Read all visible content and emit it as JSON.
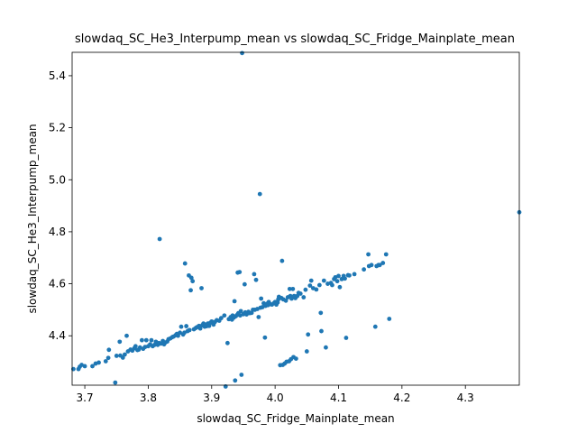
{
  "chart_data": {
    "type": "scatter",
    "title": "slowdaq_SC_He3_Interpump_mean vs slowdaq_SC_Fridge_Mainplate_mean",
    "xlabel": "slowdaq_SC_Fridge_Mainplate_mean",
    "ylabel": "slowdaq_SC_He3_Interpump_mean",
    "xlim": [
      3.68,
      4.385
    ],
    "ylim": [
      4.21,
      5.49
    ],
    "xticks": [
      "3.7",
      "3.8",
      "3.9",
      "4.0",
      "4.1",
      "4.2",
      "4.3"
    ],
    "yticks": [
      "4.4",
      "4.6",
      "4.8",
      "5.0",
      "5.2",
      "5.4"
    ],
    "grid": false,
    "point_color": "#1f77b4",
    "points": [
      [
        3.682,
        4.272
      ],
      [
        3.69,
        4.272
      ],
      [
        3.692,
        4.281
      ],
      [
        3.695,
        4.288
      ],
      [
        3.7,
        4.283
      ],
      [
        3.712,
        4.283
      ],
      [
        3.717,
        4.293
      ],
      [
        3.722,
        4.297
      ],
      [
        3.733,
        4.302
      ],
      [
        3.737,
        4.315
      ],
      [
        3.738,
        4.346
      ],
      [
        3.748,
        4.22
      ],
      [
        3.75,
        4.323
      ],
      [
        3.755,
        4.377
      ],
      [
        3.756,
        4.324
      ],
      [
        3.76,
        4.316
      ],
      [
        3.763,
        4.328
      ],
      [
        3.766,
        4.4
      ],
      [
        3.768,
        4.34
      ],
      [
        3.772,
        4.347
      ],
      [
        3.775,
        4.343
      ],
      [
        3.778,
        4.352
      ],
      [
        3.78,
        4.36
      ],
      [
        3.783,
        4.345
      ],
      [
        3.785,
        4.347
      ],
      [
        3.787,
        4.355
      ],
      [
        3.79,
        4.383
      ],
      [
        3.792,
        4.35
      ],
      [
        3.795,
        4.357
      ],
      [
        3.797,
        4.383
      ],
      [
        3.8,
        4.36
      ],
      [
        3.803,
        4.367
      ],
      [
        3.805,
        4.383
      ],
      [
        3.807,
        4.36
      ],
      [
        3.81,
        4.365
      ],
      [
        3.812,
        4.377
      ],
      [
        3.815,
        4.365
      ],
      [
        3.817,
        4.372
      ],
      [
        3.818,
        4.772
      ],
      [
        3.82,
        4.37
      ],
      [
        3.823,
        4.38
      ],
      [
        3.825,
        4.367
      ],
      [
        3.827,
        4.374
      ],
      [
        3.83,
        4.378
      ],
      [
        3.832,
        4.387
      ],
      [
        3.835,
        4.39
      ],
      [
        3.838,
        4.395
      ],
      [
        3.84,
        4.397
      ],
      [
        3.843,
        4.402
      ],
      [
        3.845,
        4.407
      ],
      [
        3.847,
        4.4
      ],
      [
        3.85,
        4.412
      ],
      [
        3.852,
        4.435
      ],
      [
        3.855,
        4.405
      ],
      [
        3.857,
        4.412
      ],
      [
        3.858,
        4.678
      ],
      [
        3.86,
        4.437
      ],
      [
        3.862,
        4.418
      ],
      [
        3.864,
        4.632
      ],
      [
        3.865,
        4.422
      ],
      [
        3.867,
        4.575
      ],
      [
        3.868,
        4.623
      ],
      [
        3.87,
        4.61
      ],
      [
        3.872,
        4.425
      ],
      [
        3.875,
        4.43
      ],
      [
        3.877,
        4.433
      ],
      [
        3.88,
        4.438
      ],
      [
        3.882,
        4.428
      ],
      [
        3.884,
        4.583
      ],
      [
        3.885,
        4.44
      ],
      [
        3.887,
        4.447
      ],
      [
        3.889,
        4.435
      ],
      [
        3.89,
        4.443
      ],
      [
        3.892,
        4.437
      ],
      [
        3.894,
        4.447
      ],
      [
        3.896,
        4.438
      ],
      [
        3.898,
        4.45
      ],
      [
        3.9,
        4.455
      ],
      [
        3.903,
        4.443
      ],
      [
        3.905,
        4.453
      ],
      [
        3.908,
        4.46
      ],
      [
        3.912,
        4.458
      ],
      [
        3.915,
        4.468
      ],
      [
        3.92,
        4.478
      ],
      [
        3.922,
        4.205
      ],
      [
        3.925,
        4.372
      ],
      [
        3.927,
        4.464
      ],
      [
        3.93,
        4.472
      ],
      [
        3.932,
        4.462
      ],
      [
        3.933,
        4.478
      ],
      [
        3.935,
        4.47
      ],
      [
        3.936,
        4.533
      ],
      [
        3.937,
        4.228
      ],
      [
        3.938,
        4.475
      ],
      [
        3.94,
        4.48
      ],
      [
        3.941,
        4.643
      ],
      [
        3.942,
        4.487
      ],
      [
        3.944,
        4.645
      ],
      [
        3.945,
        4.478
      ],
      [
        3.946,
        4.495
      ],
      [
        3.947,
        4.25
      ],
      [
        3.948,
        5.487
      ],
      [
        3.95,
        4.483
      ],
      [
        3.952,
        4.598
      ],
      [
        3.953,
        4.49
      ],
      [
        3.955,
        4.482
      ],
      [
        3.958,
        4.492
      ],
      [
        3.96,
        4.487
      ],
      [
        3.963,
        4.488
      ],
      [
        3.965,
        4.5
      ],
      [
        3.967,
        4.637
      ],
      [
        3.968,
        4.5
      ],
      [
        3.97,
        4.615
      ],
      [
        3.972,
        4.503
      ],
      [
        3.974,
        4.472
      ],
      [
        3.976,
        4.945
      ],
      [
        3.977,
        4.508
      ],
      [
        3.978,
        4.543
      ],
      [
        3.98,
        4.51
      ],
      [
        3.982,
        4.525
      ],
      [
        3.984,
        4.393
      ],
      [
        3.985,
        4.515
      ],
      [
        3.987,
        4.523
      ],
      [
        3.989,
        4.518
      ],
      [
        3.99,
        4.53
      ],
      [
        3.992,
        4.522
      ],
      [
        3.995,
        4.52
      ],
      [
        3.998,
        4.525
      ],
      [
        4.0,
        4.53
      ],
      [
        4.002,
        4.52
      ],
      [
        4.004,
        4.528
      ],
      [
        4.005,
        4.54
      ],
      [
        4.006,
        4.55
      ],
      [
        4.008,
        4.287
      ],
      [
        4.01,
        4.545
      ],
      [
        4.011,
        4.688
      ],
      [
        4.012,
        4.288
      ],
      [
        4.013,
        4.54
      ],
      [
        4.015,
        4.293
      ],
      [
        4.017,
        4.535
      ],
      [
        4.018,
        4.3
      ],
      [
        4.02,
        4.548
      ],
      [
        4.022,
        4.302
      ],
      [
        4.023,
        4.58
      ],
      [
        4.024,
        4.553
      ],
      [
        4.025,
        4.31
      ],
      [
        4.026,
        4.543
      ],
      [
        4.028,
        4.58
      ],
      [
        4.029,
        4.318
      ],
      [
        4.03,
        4.553
      ],
      [
        4.032,
        4.545
      ],
      [
        4.033,
        4.312
      ],
      [
        4.035,
        4.553
      ],
      [
        4.037,
        4.565
      ],
      [
        4.04,
        4.562
      ],
      [
        4.045,
        4.548
      ],
      [
        4.048,
        4.577
      ],
      [
        4.05,
        4.34
      ],
      [
        4.052,
        4.405
      ],
      [
        4.055,
        4.593
      ],
      [
        4.057,
        4.612
      ],
      [
        4.06,
        4.583
      ],
      [
        4.065,
        4.578
      ],
      [
        4.07,
        4.595
      ],
      [
        4.072,
        4.488
      ],
      [
        4.073,
        4.418
      ],
      [
        4.077,
        4.612
      ],
      [
        4.08,
        4.355
      ],
      [
        4.083,
        4.6
      ],
      [
        4.088,
        4.603
      ],
      [
        4.09,
        4.595
      ],
      [
        4.093,
        4.618
      ],
      [
        4.095,
        4.625
      ],
      [
        4.098,
        4.61
      ],
      [
        4.1,
        4.63
      ],
      [
        4.102,
        4.587
      ],
      [
        4.105,
        4.618
      ],
      [
        4.108,
        4.63
      ],
      [
        4.11,
        4.62
      ],
      [
        4.112,
        4.392
      ],
      [
        4.115,
        4.633
      ],
      [
        4.117,
        4.632
      ],
      [
        4.125,
        4.637
      ],
      [
        4.14,
        4.655
      ],
      [
        4.147,
        4.713
      ],
      [
        4.148,
        4.668
      ],
      [
        4.152,
        4.672
      ],
      [
        4.158,
        4.435
      ],
      [
        4.16,
        4.668
      ],
      [
        4.163,
        4.672
      ],
      [
        4.165,
        4.672
      ],
      [
        4.17,
        4.68
      ],
      [
        4.175,
        4.713
      ],
      [
        4.18,
        4.465
      ],
      [
        4.385,
        4.875
      ]
    ]
  }
}
